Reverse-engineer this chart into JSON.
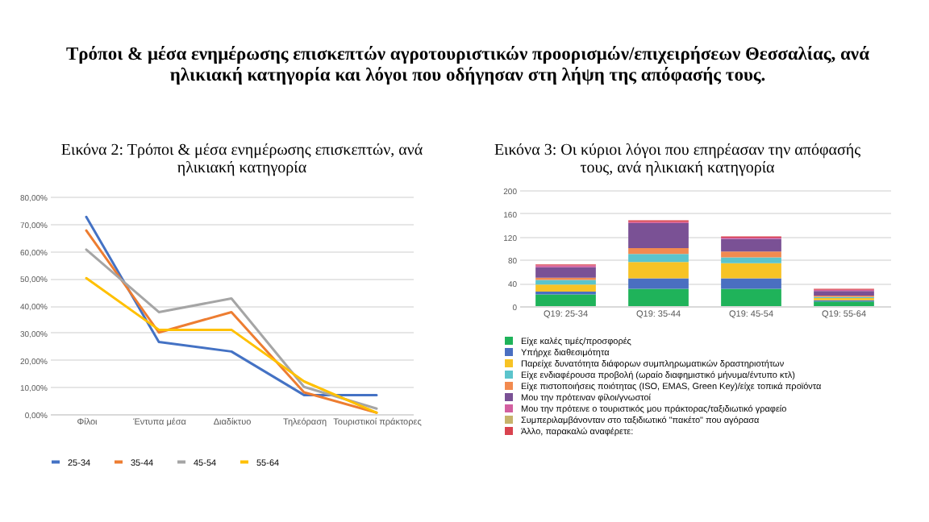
{
  "chart_data": [
    {
      "type": "line",
      "title": "Εικόνα 2: Τρόποι & μέσα ενημέρωσης επισκεπτών, ανά ηλικιακή κατηγορία",
      "annotations": [
        "Τρόποι & μέσα ενημέρωσης επισκεπτών αγροτουριστικών προορισμών/επιχειρήσεων Θεσσαλίας, ανά ηλικιακή κατηγορία και λόγοι που οδήγησαν στη λήψη της απόφασής τους."
      ],
      "categories": [
        "Φίλοι",
        "Έντυπα μέσα",
        "Διαδίκτυο",
        "Τηλεόραση",
        "Τουριστικοί πράκτορες"
      ],
      "series": [
        {
          "name": "25-34",
          "color": "#4472c4",
          "values": [
            72.5,
            26.5,
            23,
            7,
            7
          ]
        },
        {
          "name": "35-44",
          "color": "#ed7d31",
          "values": [
            67.5,
            30,
            37.5,
            8,
            0.5
          ]
        },
        {
          "name": "45-54",
          "color": "#a5a5a5",
          "values": [
            60.5,
            37.5,
            42.5,
            10,
            2
          ]
        },
        {
          "name": "55-64",
          "color": "#ffc000",
          "values": [
            50,
            31,
            31,
            12,
            0.5
          ]
        }
      ],
      "ylim": [
        0,
        80
      ],
      "yticks": [
        {
          "value": 0,
          "label": "0,00%"
        },
        {
          "value": 10,
          "label": "10,00%"
        },
        {
          "value": 20,
          "label": "20,00%"
        },
        {
          "value": 30,
          "label": "30,00%"
        },
        {
          "value": 40,
          "label": "40,00%"
        },
        {
          "value": 50,
          "label": "50,00%"
        },
        {
          "value": 60,
          "label": "60,00%"
        },
        {
          "value": 70,
          "label": "70,00%"
        },
        {
          "value": 80,
          "label": "80,00%"
        }
      ],
      "grid": "y",
      "legend": "bottom"
    },
    {
      "type": "bar",
      "stacked": true,
      "title": "Εικόνα 3: Οι κύριοι λόγοι που επηρέασαν την απόφασής τους, ανά ηλικιακή κατηγορία",
      "categories": [
        "Q19: 25-34",
        "Q19: 35-44",
        "Q19: 45-54",
        "Q19: 55-64"
      ],
      "series": [
        {
          "name": "Είχε καλές τιμές/προσφορές",
          "color": "#1fb35a",
          "values": [
            20,
            30,
            30,
            8
          ]
        },
        {
          "name": "Υπήρχε διαθεσιμότητα",
          "color": "#4a6fc1",
          "values": [
            5,
            18,
            18,
            2
          ]
        },
        {
          "name": "Παρείχε δυνατότητα διάφορων συμπληρωματικών δραστηριοτήτων",
          "color": "#f7c325",
          "values": [
            12,
            28,
            26,
            4
          ]
        },
        {
          "name": "Είχε ενδιαφέρουσα προβολή (ωραίο διαφημιστικό μήνυμα/έντυπο κτλ)",
          "color": "#5bc4cc",
          "values": [
            8,
            14,
            10,
            2
          ]
        },
        {
          "name": "Είχε πιστοποιήσεις ποιότητας (ISO, EMAS, Green Key)/είχε τοπικά προϊόντα",
          "color": "#f28a4f",
          "values": [
            4,
            10,
            10,
            2
          ]
        },
        {
          "name": "Μου την πρότειναν φίλοι/γνωστοί",
          "color": "#7a5195",
          "values": [
            18,
            43,
            22,
            8
          ]
        },
        {
          "name": "Μου την πρότεινε ο τουριστικός μου πράκτορας/ταξιδιωτικό γραφείο",
          "color": "#d35fa0",
          "values": [
            3,
            2,
            2,
            2
          ]
        },
        {
          "name": "Συμπεριλαμβάνονταν στο ταξιδιωτικό \"πακέτο\" που αγόρασα",
          "color": "#c7b36b",
          "values": [
            0,
            0,
            0,
            0
          ]
        },
        {
          "name": "Άλλο, παρακαλώ αναφέρετε:",
          "color": "#d9434f",
          "values": [
            2,
            3,
            2,
            2
          ]
        }
      ],
      "ylim": [
        0,
        200
      ],
      "yticks": [
        0,
        40,
        80,
        120,
        160,
        200
      ],
      "grid": "y",
      "legend": "bottom"
    }
  ]
}
